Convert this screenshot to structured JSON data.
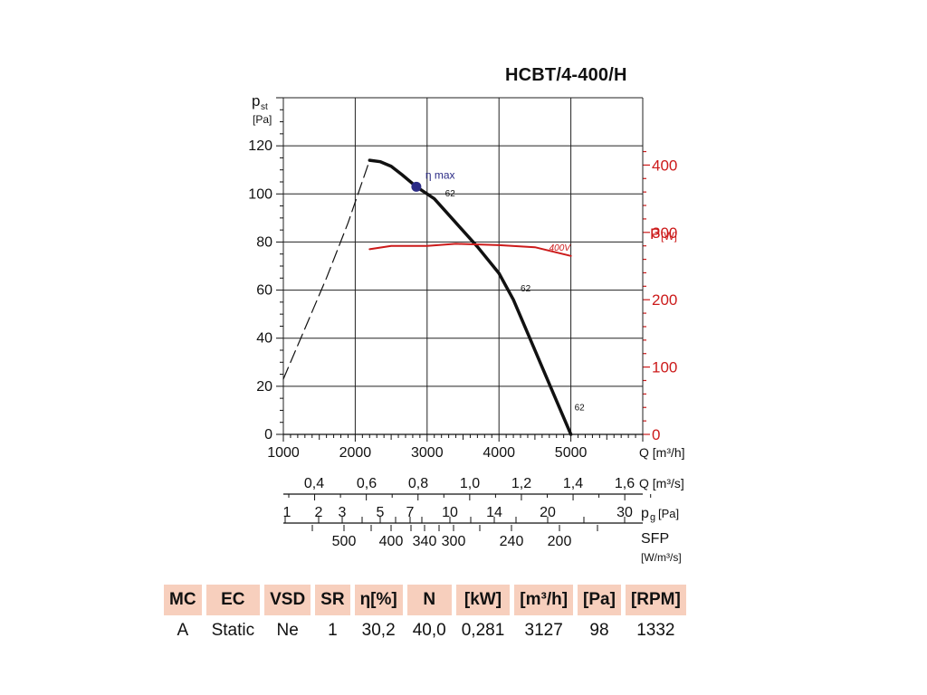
{
  "chart_data": {
    "type": "line",
    "title": "HCBT/4-400/H",
    "y_label_main": "p",
    "y_label_sub": "st",
    "y_unit": "[Pa]",
    "ylim": [
      0,
      140
    ],
    "y_ticks": [
      0,
      20,
      40,
      60,
      80,
      100,
      120
    ],
    "xlim": [
      1000,
      6000
    ],
    "x_ticks": [
      1000,
      2000,
      3000,
      4000,
      5000
    ],
    "x_label": "Q [m³/h]",
    "y2_label_main": "P",
    "y2_label_sub": "[W]",
    "y2lim": [
      0,
      500
    ],
    "y2_ticks": [
      0,
      100,
      200,
      300,
      400
    ],
    "series": [
      {
        "name": "",
        "axis": "left",
        "style": "solid",
        "color": "#111111",
        "x": [
          2200,
          2350,
          2500,
          2650,
          2850,
          3100,
          3400,
          3700,
          4000,
          4200,
          4400,
          4600,
          4800,
          5000
        ],
        "y": [
          114,
          113.4,
          111.5,
          108,
          103,
          98,
          88,
          78,
          67,
          56,
          42,
          28,
          14,
          0
        ]
      },
      {
        "name": "",
        "axis": "left",
        "style": "dashed",
        "color": "#111111",
        "x": [
          1000,
          1300,
          1600,
          1900,
          2200
        ],
        "y": [
          23,
          44,
          65,
          88,
          114
        ]
      },
      {
        "name": "400V",
        "axis": "right",
        "style": "solid",
        "color": "#cc1a1a",
        "x": [
          2200,
          2500,
          3000,
          3400,
          4000,
          4500,
          5000
        ],
        "y": [
          275,
          280,
          280,
          283,
          281,
          278,
          265
        ]
      }
    ],
    "annotations": [
      {
        "text": "η max",
        "x": 2850,
        "y": 103,
        "kind": "marker",
        "color": "#2c2c86"
      },
      {
        "text": "62",
        "x": 3200,
        "y": 100.5
      },
      {
        "text": "62",
        "x": 4250,
        "y": 61
      },
      {
        "text": "62",
        "x": 5000,
        "y": 11.5
      }
    ],
    "secondary_scales": [
      {
        "label": "Q [m³/s]",
        "ticks": [
          "0,4",
          "0,6",
          "0,8",
          "1,0",
          "1,2",
          "1,4",
          "1,6"
        ]
      },
      {
        "label_main": "p",
        "label_sub": "g",
        "label_unit": "[Pa]",
        "ticks": [
          "1",
          "2",
          "3",
          "5",
          "7",
          "10",
          "14",
          "20",
          "30"
        ]
      },
      {
        "label": "SFP",
        "unit": "[W/m³/s]",
        "ticks": [
          "500",
          "400",
          "340",
          "300",
          "240",
          "200"
        ]
      }
    ]
  },
  "table": {
    "headers": [
      "MC",
      "EC",
      "VSD",
      "SR",
      "η[%]",
      "N",
      "[kW]",
      "[m³/h]",
      "[Pa]",
      "[RPM]"
    ],
    "values": [
      "A",
      "Static",
      "Ne",
      "1",
      "30,2",
      "40,0",
      "0,281",
      "3127",
      "98",
      "1332"
    ]
  },
  "colors": {
    "red_axis": "#cc1a1a",
    "table_header_bg": "#f7cfbd",
    "marker": "#2c2c86"
  }
}
